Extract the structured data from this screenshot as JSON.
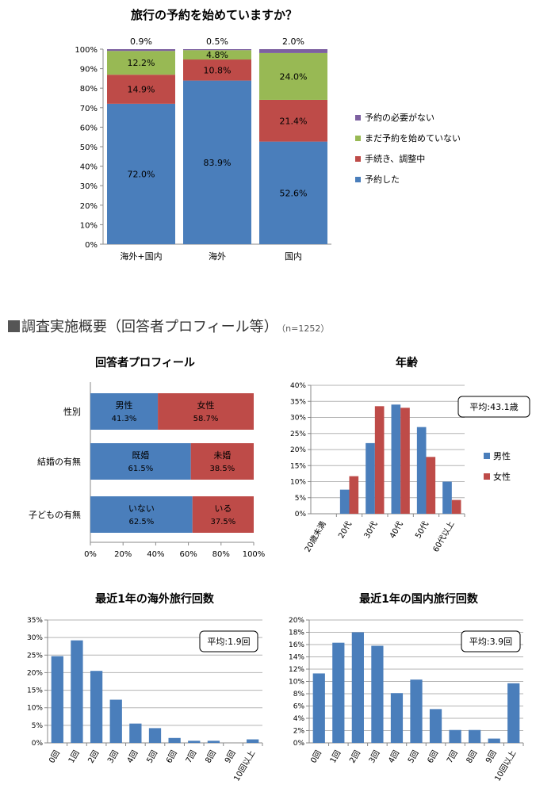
{
  "section": {
    "heading": "調査実施概要（回答者プロフィール等）",
    "note": "（n=1252）"
  },
  "colors": {
    "blue": "#4a7ebb",
    "red": "#be4b48",
    "green": "#98b954",
    "purple": "#7d60a0"
  },
  "chart_data": [
    {
      "id": "booking",
      "type": "bar",
      "stacked": true,
      "title": "旅行の予約を始めていますか？",
      "categories": [
        "海外+国内",
        "海外",
        "国内"
      ],
      "yticks": [
        "0%",
        "10%",
        "20%",
        "30%",
        "40%",
        "50%",
        "60%",
        "70%",
        "80%",
        "90%",
        "100%"
      ],
      "ylim": [
        0,
        100
      ],
      "legend_position": "right",
      "series": [
        {
          "name": "予約した",
          "color": "#4a7ebb",
          "values": [
            72.0,
            83.9,
            52.6
          ],
          "labels": [
            "72.0%",
            "83.9%",
            "52.6%"
          ]
        },
        {
          "name": "手続き、調整中",
          "color": "#be4b48",
          "values": [
            14.9,
            10.8,
            21.4
          ],
          "labels": [
            "14.9%",
            "10.8%",
            "21.4%"
          ]
        },
        {
          "name": "まだ予約を始めていない",
          "color": "#98b954",
          "values": [
            12.2,
            4.8,
            24.0
          ],
          "labels": [
            "12.2%",
            "4.8%",
            "24.0%"
          ]
        },
        {
          "name": "予約の必要がない",
          "color": "#7d60a0",
          "values": [
            0.9,
            0.5,
            2.0
          ],
          "labels": [
            "0.9%",
            "0.5%",
            "2.0%"
          ]
        }
      ]
    },
    {
      "id": "profile",
      "type": "bar",
      "orientation": "horizontal",
      "stacked": true,
      "title": "回答者プロフィール",
      "xticks": [
        "0%",
        "20%",
        "40%",
        "60%",
        "80%",
        "100%"
      ],
      "xlim": [
        0,
        100
      ],
      "rows": [
        {
          "label": "性別",
          "segments": [
            {
              "name": "男性",
              "value": 41.3,
              "label": "41.3%",
              "color": "#4a7ebb"
            },
            {
              "name": "女性",
              "value": 58.7,
              "label": "58.7%",
              "color": "#be4b48"
            }
          ]
        },
        {
          "label": "結婚の有無",
          "segments": [
            {
              "name": "既婚",
              "value": 61.5,
              "label": "61.5%",
              "color": "#4a7ebb"
            },
            {
              "name": "未婚",
              "value": 38.5,
              "label": "38.5%",
              "color": "#be4b48"
            }
          ]
        },
        {
          "label": "子どもの有無",
          "segments": [
            {
              "name": "いない",
              "value": 62.5,
              "label": "62.5%",
              "color": "#4a7ebb"
            },
            {
              "name": "いる",
              "value": 37.5,
              "label": "37.5%",
              "color": "#be4b48"
            }
          ]
        }
      ]
    },
    {
      "id": "age",
      "type": "bar",
      "title": "年齢",
      "categories": [
        "20歳未満",
        "20代",
        "30代",
        "40代",
        "50代",
        "60代以上"
      ],
      "yticks": [
        "0%",
        "5%",
        "10%",
        "15%",
        "20%",
        "25%",
        "30%",
        "35%",
        "40%"
      ],
      "ylim": [
        0,
        40
      ],
      "annotation": "平均:43.1歳",
      "legend_position": "right",
      "series": [
        {
          "name": "男性",
          "color": "#4a7ebb",
          "values": [
            0,
            7.5,
            22,
            34,
            27,
            10
          ]
        },
        {
          "name": "女性",
          "color": "#be4b48",
          "values": [
            0,
            11.7,
            33.5,
            33,
            17.7,
            4.3
          ]
        }
      ]
    },
    {
      "id": "overseas",
      "type": "bar",
      "title": "最近1年の海外旅行回数",
      "categories": [
        "0回",
        "1回",
        "2回",
        "3回",
        "4回",
        "5回",
        "6回",
        "7回",
        "8回",
        "9回",
        "10回以上"
      ],
      "yticks": [
        "0%",
        "5%",
        "10%",
        "15%",
        "20%",
        "25%",
        "30%",
        "35%"
      ],
      "ylim": [
        0,
        35
      ],
      "annotation": "平均:1.9回",
      "series": [
        {
          "name": "海外旅行回数",
          "color": "#4a7ebb",
          "values": [
            24.7,
            29.2,
            20.5,
            12.3,
            5.5,
            4.2,
            1.4,
            0.6,
            0.6,
            0,
            1.0
          ]
        }
      ]
    },
    {
      "id": "domestic",
      "type": "bar",
      "title": "最近1年の国内旅行回数",
      "categories": [
        "0回",
        "1回",
        "2回",
        "3回",
        "4回",
        "5回",
        "6回",
        "7回",
        "8回",
        "9回",
        "10回以上"
      ],
      "yticks": [
        "0%",
        "2%",
        "4%",
        "6%",
        "8%",
        "10%",
        "12%",
        "14%",
        "16%",
        "18%",
        "20%"
      ],
      "ylim": [
        0,
        20
      ],
      "annotation": "平均:3.9回",
      "series": [
        {
          "name": "国内旅行回数",
          "color": "#4a7ebb",
          "values": [
            11.3,
            16.3,
            18.0,
            15.8,
            8.1,
            10.3,
            5.5,
            2.1,
            2.1,
            0.7,
            9.7
          ]
        }
      ]
    }
  ]
}
